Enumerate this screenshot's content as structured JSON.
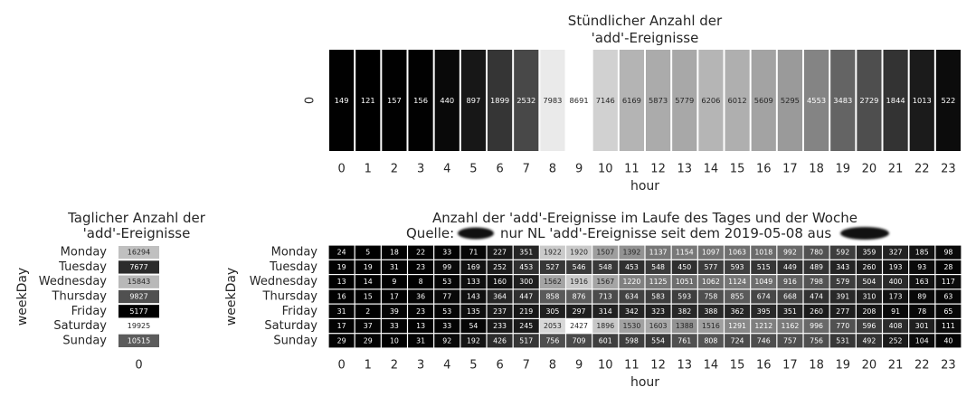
{
  "chart_data": [
    {
      "type": "heatmap",
      "title": "Stündlicher Anzahl der\n'add'-Ereignisse",
      "xlabel": "hour",
      "ylabel": "",
      "x": [
        0,
        1,
        2,
        3,
        4,
        5,
        6,
        7,
        8,
        9,
        10,
        11,
        12,
        13,
        14,
        15,
        16,
        17,
        18,
        19,
        20,
        21,
        22,
        23
      ],
      "y": [
        "0"
      ],
      "values": [
        [
          149,
          121,
          157,
          156,
          440,
          897,
          1899,
          2532,
          7983,
          8691,
          7146,
          6169,
          5873,
          5779,
          6206,
          6012,
          5609,
          5295,
          4553,
          3483,
          2729,
          1844,
          1013,
          522
        ]
      ],
      "colormap": "gray"
    },
    {
      "type": "heatmap",
      "title": "Taglicher Anzahl der\n'add'-Ereignisse",
      "xlabel": "",
      "ylabel": "weekDay",
      "x": [
        "0"
      ],
      "y": [
        "Monday",
        "Tuesday",
        "Wednesday",
        "Thursday",
        "Friday",
        "Saturday",
        "Sunday"
      ],
      "values": [
        [
          16294
        ],
        [
          7677
        ],
        [
          15843
        ],
        [
          9827
        ],
        [
          5177
        ],
        [
          19925
        ],
        [
          10515
        ]
      ],
      "colormap": "gray"
    },
    {
      "type": "heatmap",
      "title": "Anzahl der 'add'-Ereignisse im Laufe des Tages und der Woche\nQuelle: nur NL 'add'-Ereignisse seit dem 2019-05-08 aus",
      "xlabel": "hour",
      "ylabel": "weekDay",
      "x": [
        0,
        1,
        2,
        3,
        4,
        5,
        6,
        7,
        8,
        9,
        10,
        11,
        12,
        13,
        14,
        15,
        16,
        17,
        18,
        19,
        20,
        21,
        22,
        23
      ],
      "y": [
        "Monday",
        "Tuesday",
        "Wednesday",
        "Thursday",
        "Friday",
        "Saturday",
        "Sunday"
      ],
      "values": [
        [
          24,
          5,
          18,
          22,
          33,
          71,
          227,
          351,
          1922,
          1920,
          1507,
          1392,
          1137,
          1154,
          1097,
          1063,
          1018,
          992,
          780,
          592,
          359,
          327,
          185,
          98
        ],
        [
          19,
          19,
          31,
          23,
          99,
          169,
          252,
          453,
          527,
          546,
          548,
          453,
          548,
          450,
          577,
          593,
          515,
          449,
          489,
          343,
          260,
          193,
          93,
          28
        ],
        [
          13,
          14,
          9,
          8,
          53,
          133,
          160,
          300,
          1562,
          1916,
          1567,
          1220,
          1125,
          1051,
          1062,
          1124,
          1049,
          916,
          798,
          579,
          504,
          400,
          163,
          117
        ],
        [
          16,
          15,
          17,
          36,
          77,
          143,
          364,
          447,
          858,
          876,
          713,
          634,
          583,
          593,
          758,
          855,
          674,
          668,
          474,
          391,
          310,
          173,
          89,
          63
        ],
        [
          31,
          2,
          39,
          23,
          53,
          135,
          237,
          219,
          305,
          297,
          314,
          342,
          323,
          382,
          388,
          362,
          395,
          351,
          260,
          277,
          208,
          91,
          78,
          65
        ],
        [
          17,
          37,
          33,
          13,
          33,
          54,
          233,
          245,
          2053,
          2427,
          1896,
          1530,
          1603,
          1388,
          1516,
          1291,
          1212,
          1162,
          996,
          770,
          596,
          408,
          301,
          111
        ],
        [
          29,
          29,
          10,
          31,
          92,
          192,
          426,
          517,
          756,
          709,
          601,
          598,
          554,
          761,
          808,
          724,
          746,
          757,
          756,
          531,
          492,
          252,
          104,
          40
        ]
      ],
      "colormap": "gray"
    }
  ]
}
